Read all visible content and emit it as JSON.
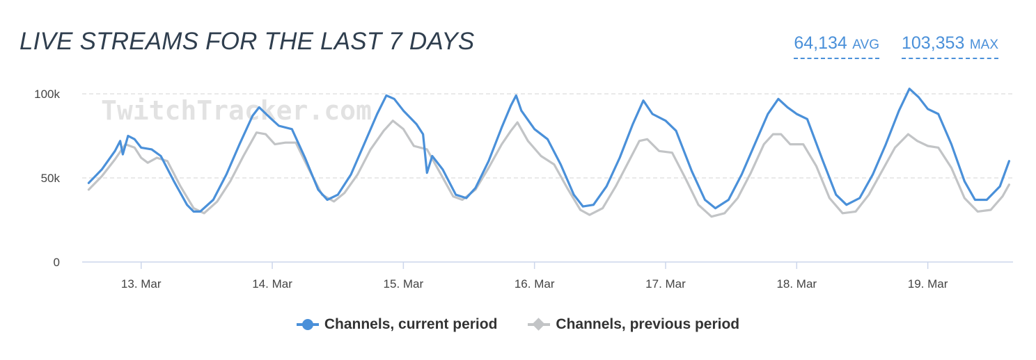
{
  "header": {
    "title": "LIVE STREAMS FOR THE LAST 7 DAYS",
    "avg_value": "64,134",
    "avg_unit": "AVG",
    "max_value": "103,353",
    "max_unit": "MAX"
  },
  "watermark": "TwitchTracker.com",
  "chart_data": {
    "type": "line",
    "title": "LIVE STREAMS FOR THE LAST 7 DAYS",
    "xlabel": "",
    "ylabel": "",
    "x_range": [
      12.55,
      19.65
    ],
    "ylim": [
      0,
      100000
    ],
    "y_ticks": [
      0,
      50000,
      100000
    ],
    "y_tick_labels": [
      "0",
      "50k",
      "100k"
    ],
    "x_ticks": [
      13,
      14,
      15,
      16,
      17,
      18,
      19
    ],
    "x_tick_labels": [
      "13. Mar",
      "14. Mar",
      "15. Mar",
      "16. Mar",
      "17. Mar",
      "18. Mar",
      "19. Mar"
    ],
    "grid": "horizontal dashed",
    "legend_position": "bottom-center",
    "series": [
      {
        "name": "Channels, current period",
        "color": "#4a90d9",
        "points": [
          [
            12.6,
            47000
          ],
          [
            12.7,
            55000
          ],
          [
            12.8,
            66000
          ],
          [
            12.84,
            72000
          ],
          [
            12.86,
            64000
          ],
          [
            12.9,
            75000
          ],
          [
            12.95,
            73000
          ],
          [
            13.0,
            68000
          ],
          [
            13.08,
            67000
          ],
          [
            13.15,
            63000
          ],
          [
            13.25,
            48000
          ],
          [
            13.35,
            34000
          ],
          [
            13.4,
            30000
          ],
          [
            13.45,
            30000
          ],
          [
            13.55,
            37000
          ],
          [
            13.65,
            52000
          ],
          [
            13.75,
            70000
          ],
          [
            13.85,
            87000
          ],
          [
            13.9,
            92000
          ],
          [
            13.98,
            86000
          ],
          [
            14.05,
            81000
          ],
          [
            14.15,
            79000
          ],
          [
            14.25,
            62000
          ],
          [
            14.35,
            43000
          ],
          [
            14.42,
            37000
          ],
          [
            14.5,
            40000
          ],
          [
            14.6,
            52000
          ],
          [
            14.7,
            70000
          ],
          [
            14.8,
            88000
          ],
          [
            14.87,
            99000
          ],
          [
            14.93,
            97000
          ],
          [
            15.0,
            90000
          ],
          [
            15.1,
            82000
          ],
          [
            15.15,
            76000
          ],
          [
            15.18,
            53000
          ],
          [
            15.22,
            63000
          ],
          [
            15.3,
            55000
          ],
          [
            15.4,
            40000
          ],
          [
            15.48,
            38000
          ],
          [
            15.55,
            44000
          ],
          [
            15.65,
            60000
          ],
          [
            15.75,
            80000
          ],
          [
            15.82,
            93000
          ],
          [
            15.86,
            99000
          ],
          [
            15.9,
            90000
          ],
          [
            16.0,
            79000
          ],
          [
            16.1,
            73000
          ],
          [
            16.2,
            58000
          ],
          [
            16.3,
            40000
          ],
          [
            16.37,
            33000
          ],
          [
            16.45,
            34000
          ],
          [
            16.55,
            45000
          ],
          [
            16.65,
            62000
          ],
          [
            16.75,
            82000
          ],
          [
            16.83,
            96000
          ],
          [
            16.9,
            88000
          ],
          [
            17.0,
            84000
          ],
          [
            17.08,
            78000
          ],
          [
            17.2,
            54000
          ],
          [
            17.3,
            37000
          ],
          [
            17.38,
            32000
          ],
          [
            17.48,
            37000
          ],
          [
            17.58,
            52000
          ],
          [
            17.68,
            70000
          ],
          [
            17.78,
            88000
          ],
          [
            17.86,
            97000
          ],
          [
            17.93,
            92000
          ],
          [
            18.0,
            88000
          ],
          [
            18.08,
            85000
          ],
          [
            18.2,
            60000
          ],
          [
            18.3,
            40000
          ],
          [
            18.38,
            34000
          ],
          [
            18.48,
            38000
          ],
          [
            18.58,
            52000
          ],
          [
            18.68,
            70000
          ],
          [
            18.78,
            90000
          ],
          [
            18.86,
            103000
          ],
          [
            18.93,
            98000
          ],
          [
            19.0,
            91000
          ],
          [
            19.08,
            88000
          ],
          [
            19.18,
            70000
          ],
          [
            19.28,
            48000
          ],
          [
            19.36,
            37000
          ],
          [
            19.45,
            37000
          ],
          [
            19.55,
            45000
          ],
          [
            19.62,
            60000
          ]
        ]
      },
      {
        "name": "Channels, previous period",
        "color": "#c2c4c6",
        "points": [
          [
            12.6,
            43000
          ],
          [
            12.7,
            51000
          ],
          [
            12.8,
            61000
          ],
          [
            12.88,
            70000
          ],
          [
            12.95,
            68000
          ],
          [
            13.0,
            62000
          ],
          [
            13.05,
            59000
          ],
          [
            13.12,
            62000
          ],
          [
            13.2,
            60000
          ],
          [
            13.3,
            45000
          ],
          [
            13.4,
            32000
          ],
          [
            13.48,
            29000
          ],
          [
            13.58,
            36000
          ],
          [
            13.68,
            48000
          ],
          [
            13.78,
            63000
          ],
          [
            13.88,
            77000
          ],
          [
            13.95,
            76000
          ],
          [
            14.02,
            70000
          ],
          [
            14.1,
            71000
          ],
          [
            14.18,
            71000
          ],
          [
            14.28,
            55000
          ],
          [
            14.38,
            40000
          ],
          [
            14.47,
            36000
          ],
          [
            14.55,
            41000
          ],
          [
            14.65,
            52000
          ],
          [
            14.75,
            67000
          ],
          [
            14.85,
            78000
          ],
          [
            14.92,
            84000
          ],
          [
            15.0,
            79000
          ],
          [
            15.08,
            69000
          ],
          [
            15.18,
            67000
          ],
          [
            15.28,
            53000
          ],
          [
            15.38,
            39000
          ],
          [
            15.45,
            37000
          ],
          [
            15.55,
            43000
          ],
          [
            15.65,
            56000
          ],
          [
            15.75,
            70000
          ],
          [
            15.82,
            78000
          ],
          [
            15.87,
            83000
          ],
          [
            15.95,
            72000
          ],
          [
            16.05,
            63000
          ],
          [
            16.15,
            58000
          ],
          [
            16.25,
            44000
          ],
          [
            16.35,
            31000
          ],
          [
            16.42,
            28000
          ],
          [
            16.52,
            32000
          ],
          [
            16.62,
            45000
          ],
          [
            16.72,
            60000
          ],
          [
            16.8,
            72000
          ],
          [
            16.86,
            73000
          ],
          [
            16.95,
            66000
          ],
          [
            17.05,
            65000
          ],
          [
            17.15,
            50000
          ],
          [
            17.25,
            34000
          ],
          [
            17.35,
            27000
          ],
          [
            17.45,
            29000
          ],
          [
            17.55,
            38000
          ],
          [
            17.65,
            53000
          ],
          [
            17.75,
            70000
          ],
          [
            17.82,
            76000
          ],
          [
            17.88,
            76000
          ],
          [
            17.95,
            70000
          ],
          [
            18.05,
            70000
          ],
          [
            18.15,
            57000
          ],
          [
            18.25,
            38000
          ],
          [
            18.35,
            29000
          ],
          [
            18.45,
            30000
          ],
          [
            18.55,
            40000
          ],
          [
            18.65,
            54000
          ],
          [
            18.75,
            68000
          ],
          [
            18.85,
            76000
          ],
          [
            18.92,
            72000
          ],
          [
            19.0,
            69000
          ],
          [
            19.08,
            68000
          ],
          [
            19.18,
            56000
          ],
          [
            19.28,
            38000
          ],
          [
            19.38,
            30000
          ],
          [
            19.48,
            31000
          ],
          [
            19.57,
            39000
          ],
          [
            19.62,
            46000
          ]
        ]
      }
    ]
  }
}
